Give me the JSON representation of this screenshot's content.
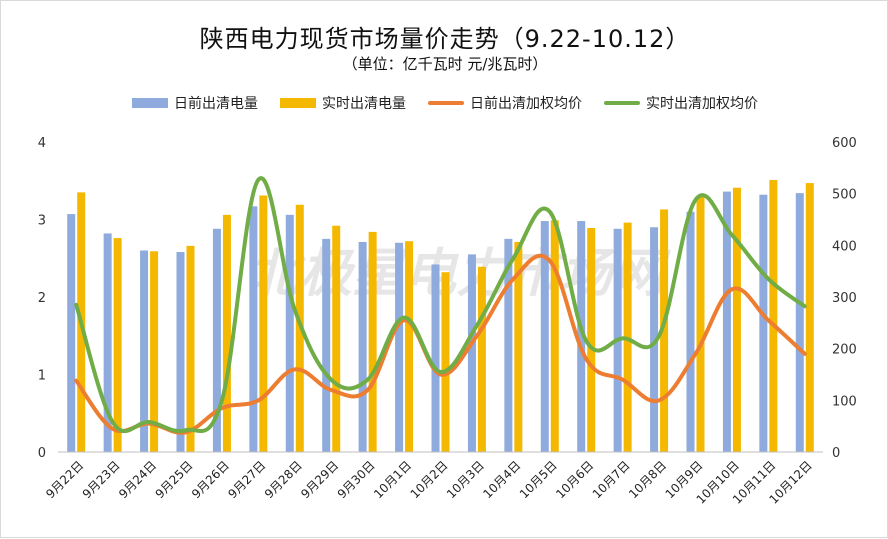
{
  "chart_data": {
    "type": "bar",
    "title": "陕西电力现货市场量价走势（9.22-10.12）",
    "subtitle": "（单位：亿千瓦时 元/兆瓦时）",
    "categories": [
      "9月22日",
      "9月23日",
      "9月24日",
      "9月25日",
      "9月26日",
      "9月27日",
      "9月28日",
      "9月29日",
      "9月30日",
      "10月1日",
      "10月2日",
      "10月3日",
      "10月4日",
      "10月5日",
      "10月6日",
      "10月7日",
      "10月8日",
      "10月9日",
      "10月10日",
      "10月11日",
      "10月12日"
    ],
    "series": [
      {
        "name": "日前出清电量",
        "type": "bar",
        "axis": "left",
        "color": "#8faadc",
        "values": [
          3.07,
          2.82,
          2.6,
          2.58,
          2.88,
          3.17,
          3.06,
          2.75,
          2.71,
          2.7,
          2.42,
          2.55,
          2.75,
          2.98,
          2.98,
          2.88,
          2.9,
          3.1,
          3.36,
          3.32,
          3.34
        ]
      },
      {
        "name": "实时出清电量",
        "type": "bar",
        "axis": "left",
        "color": "#f5b800",
        "values": [
          3.35,
          2.76,
          2.59,
          2.66,
          3.06,
          3.31,
          3.19,
          2.92,
          2.84,
          2.72,
          2.32,
          2.39,
          2.71,
          2.99,
          2.89,
          2.96,
          3.13,
          3.3,
          3.41,
          3.51,
          3.47
        ]
      },
      {
        "name": "日前出清加权均价",
        "type": "line",
        "axis": "right",
        "color": "#ed7d31",
        "values": [
          138,
          45,
          55,
          38,
          85,
          100,
          160,
          120,
          120,
          255,
          150,
          225,
          335,
          370,
          180,
          140,
          100,
          190,
          315,
          255,
          190
        ]
      },
      {
        "name": "实时出清加权均价",
        "type": "line",
        "axis": "right",
        "color": "#70ad47",
        "values": [
          285,
          58,
          58,
          42,
          100,
          527,
          275,
          140,
          140,
          260,
          155,
          245,
          375,
          465,
          215,
          220,
          225,
          488,
          420,
          335,
          282
        ]
      }
    ],
    "y_left": {
      "min": 0,
      "max": 4,
      "ticks": [
        0,
        1,
        2,
        3,
        4
      ]
    },
    "y_right": {
      "min": 0,
      "max": 600,
      "ticks": [
        0,
        100,
        200,
        300,
        400,
        500,
        600
      ]
    },
    "legend_position": "top",
    "grid": false,
    "watermark": "北极星电力市场网"
  }
}
